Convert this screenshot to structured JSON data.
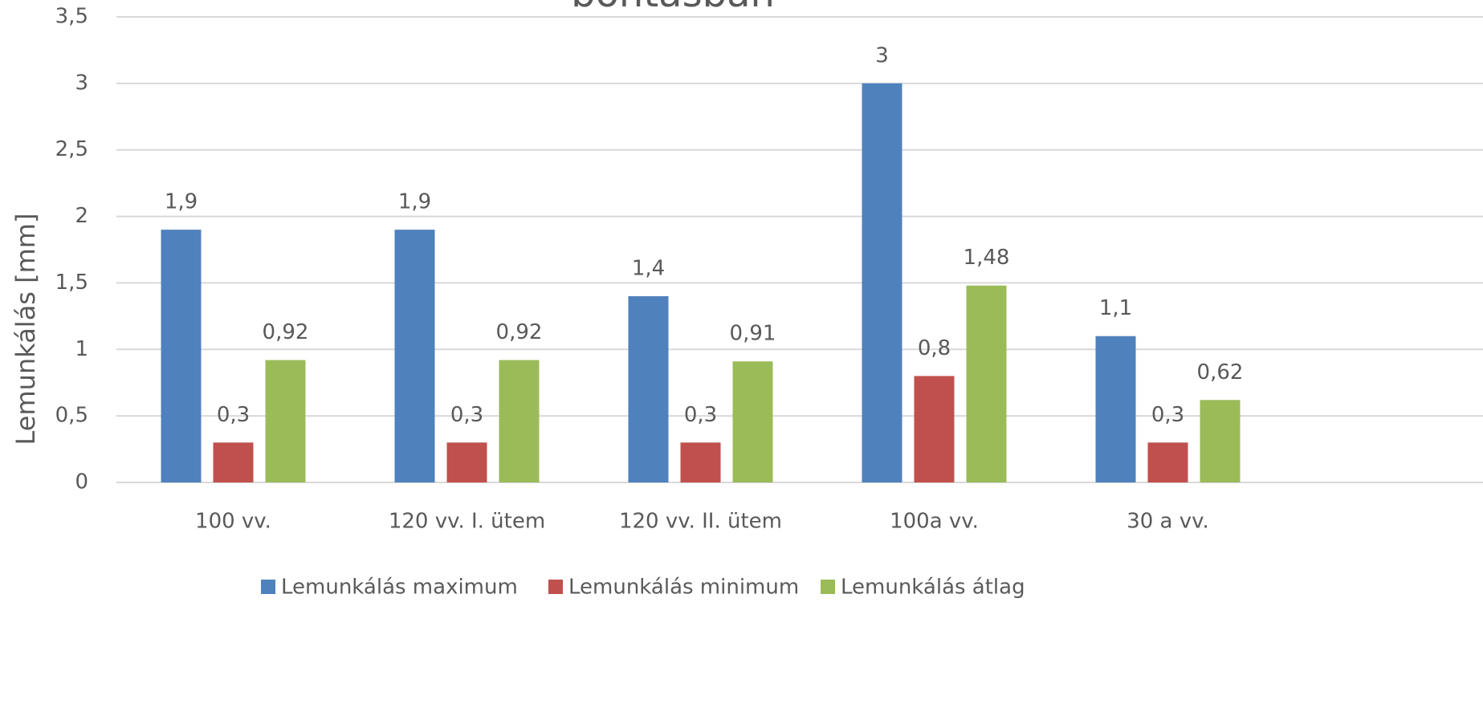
{
  "chart_data": {
    "type": "bar",
    "title": "bontásban",
    "y_label": "Lemunkálás [mm]",
    "categories": [
      "100 vv.",
      "120 vv. I. ütem",
      "120 vv. II. ütem",
      "100a vv.",
      "30 a vv."
    ],
    "series": [
      {
        "name": "Lemunkálás maximum",
        "color": "#4f81bd",
        "values": [
          1.9,
          1.9,
          1.4,
          3,
          1.1
        ],
        "value_labels": [
          "1,9",
          "1,9",
          "1,4",
          "3",
          "1,1"
        ]
      },
      {
        "name": "Lemunkálás minimum",
        "color": "#c0504d",
        "values": [
          0.3,
          0.3,
          0.3,
          0.8,
          0.3
        ],
        "value_labels": [
          "0,3",
          "0,3",
          "0,3",
          "0,8",
          "0,3"
        ]
      },
      {
        "name": "Lemunkálás átlag",
        "color": "#9bbb59",
        "values": [
          0.92,
          0.92,
          0.91,
          1.48,
          0.62
        ],
        "value_labels": [
          "0,92",
          "0,92",
          "0,91",
          "1,48",
          "0,62"
        ]
      }
    ],
    "ylim": [
      0,
      3.5
    ],
    "yticks": [
      0,
      {
        "value": 0.5,
        "label": "0,5"
      },
      1,
      {
        "value": 1.5,
        "label": "1,5"
      },
      2,
      {
        "value": 2.5,
        "label": "2,5"
      },
      3,
      {
        "value": 3.5,
        "label": "3,5"
      }
    ],
    "grid": true,
    "legend": "bottom"
  }
}
